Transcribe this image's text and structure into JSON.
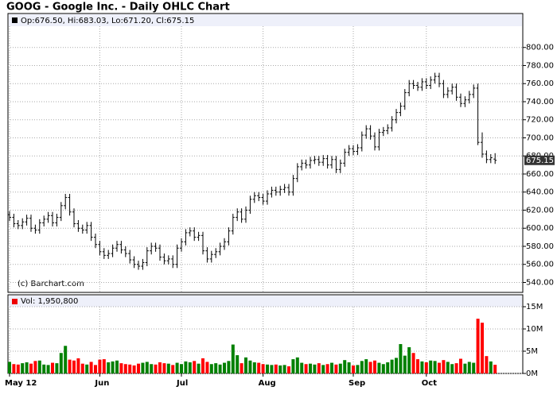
{
  "chart_data": [
    {
      "type": "ohlc",
      "title": "GOOG - Google Inc. - Daily OHLC Chart",
      "legend_text": "Op:676.50, Hi:683.03, Lo:671.20, Cl:675.15",
      "credit": "(c) Barchart.com",
      "color": "#000000",
      "grid": true,
      "last_label": "675.15",
      "ylim": [
        529,
        823.5
      ],
      "yticks": [
        {
          "value": 540,
          "label": "540.00"
        },
        {
          "value": 560,
          "label": "560.00"
        },
        {
          "value": 580,
          "label": "580.00"
        },
        {
          "value": 600,
          "label": "600.00"
        },
        {
          "value": 620,
          "label": "620.00"
        },
        {
          "value": 640,
          "label": "640.00"
        },
        {
          "value": 660,
          "label": "660.00"
        },
        {
          "value": 680,
          "label": "680.00"
        },
        {
          "value": 700,
          "label": "700.00"
        },
        {
          "value": 720,
          "label": "720.00"
        },
        {
          "value": 740,
          "label": "740.00"
        },
        {
          "value": 760,
          "label": "760.00"
        },
        {
          "value": 780,
          "label": "780.00"
        },
        {
          "value": 800,
          "label": "800.00"
        }
      ],
      "open": [
        615,
        612,
        605,
        603,
        607,
        611,
        600,
        598,
        606,
        610,
        614,
        606,
        612,
        625,
        634,
        618,
        605,
        600,
        598,
        603,
        590,
        582,
        574,
        570,
        572,
        578,
        582,
        576,
        572,
        565,
        560,
        558,
        562,
        575,
        580,
        578,
        568,
        564,
        566,
        560,
        578,
        585,
        595,
        597,
        590,
        592,
        575,
        566,
        571,
        574,
        580,
        585,
        597,
        612,
        618,
        610,
        620,
        632,
        636,
        634,
        630,
        638,
        642,
        640,
        643,
        645,
        640,
        655,
        668,
        672,
        670,
        675,
        676,
        673,
        677,
        670,
        676,
        665,
        672,
        684,
        688,
        685,
        689,
        703,
        710,
        702,
        690,
        706,
        708,
        711,
        720,
        728,
        735,
        750,
        760,
        758,
        756,
        762,
        758,
        764,
        768,
        760,
        748,
        752,
        756,
        745,
        738,
        742,
        748,
        755,
        695,
        682,
        676,
        676.5
      ],
      "high": [
        619,
        616,
        609,
        611,
        615,
        615,
        604,
        610,
        614,
        618,
        618,
        616,
        629,
        638,
        638,
        622,
        609,
        604,
        607,
        607,
        594,
        586,
        578,
        576,
        582,
        586,
        586,
        580,
        576,
        569,
        564,
        566,
        579,
        584,
        584,
        582,
        572,
        570,
        570,
        582,
        589,
        599,
        601,
        601,
        596,
        596,
        579,
        575,
        578,
        584,
        589,
        601,
        616,
        622,
        622,
        624,
        636,
        640,
        640,
        638,
        642,
        646,
        646,
        647,
        649,
        649,
        659,
        672,
        676,
        676,
        679,
        680,
        680,
        681,
        681,
        680,
        680,
        676,
        688,
        692,
        692,
        693,
        707,
        714,
        714,
        706,
        710,
        712,
        715,
        724,
        732,
        739,
        754,
        764,
        764,
        762,
        766,
        766,
        768,
        772,
        772,
        764,
        756,
        760,
        760,
        749,
        746,
        752,
        759,
        760,
        706,
        686,
        682,
        683.03
      ],
      "low": [
        608,
        601,
        599,
        599,
        603,
        596,
        594,
        594,
        602,
        606,
        602,
        602,
        608,
        621,
        614,
        601,
        596,
        594,
        594,
        586,
        578,
        570,
        566,
        566,
        568,
        574,
        572,
        568,
        561,
        556,
        554,
        554,
        558,
        571,
        574,
        564,
        560,
        560,
        556,
        556,
        574,
        581,
        591,
        586,
        586,
        571,
        562,
        562,
        567,
        570,
        576,
        581,
        593,
        608,
        606,
        606,
        616,
        628,
        630,
        626,
        626,
        634,
        636,
        636,
        639,
        636,
        636,
        651,
        664,
        666,
        666,
        671,
        669,
        669,
        666,
        666,
        661,
        661,
        668,
        680,
        681,
        681,
        685,
        699,
        698,
        686,
        686,
        702,
        704,
        707,
        716,
        724,
        731,
        746,
        754,
        752,
        752,
        754,
        754,
        760,
        756,
        744,
        744,
        748,
        741,
        734,
        734,
        738,
        744,
        692,
        678,
        672,
        672,
        671.2
      ],
      "close": [
        612,
        605,
        603,
        607,
        611,
        600,
        598,
        606,
        610,
        614,
        606,
        612,
        625,
        634,
        618,
        605,
        600,
        598,
        603,
        590,
        582,
        574,
        570,
        572,
        578,
        582,
        576,
        572,
        565,
        560,
        558,
        562,
        575,
        580,
        578,
        568,
        564,
        566,
        560,
        578,
        585,
        595,
        597,
        590,
        592,
        575,
        566,
        571,
        574,
        580,
        585,
        597,
        612,
        618,
        610,
        620,
        632,
        636,
        634,
        630,
        638,
        642,
        640,
        643,
        645,
        640,
        655,
        668,
        672,
        670,
        675,
        676,
        673,
        677,
        670,
        676,
        665,
        672,
        684,
        688,
        685,
        689,
        703,
        710,
        702,
        690,
        706,
        708,
        711,
        720,
        728,
        735,
        750,
        760,
        758,
        756,
        762,
        758,
        764,
        768,
        760,
        748,
        752,
        756,
        745,
        738,
        742,
        748,
        755,
        695,
        682,
        676,
        678,
        675.15
      ]
    },
    {
      "type": "bar",
      "legend_text": "Vol: 1,950,800",
      "up_color": "#008000",
      "down_color": "#ff0000",
      "grid": true,
      "ylim": [
        0,
        15000000
      ],
      "yticks": [
        {
          "value": 0,
          "label": "0M"
        },
        {
          "value": 5000000,
          "label": "5M"
        },
        {
          "value": 10000000,
          "label": "10M"
        },
        {
          "value": 15000000,
          "label": "15M"
        }
      ],
      "categories": [
        "May 12",
        null,
        null,
        null,
        null,
        null,
        null,
        null,
        null,
        null,
        null,
        null,
        null,
        null,
        null,
        null,
        null,
        null,
        null,
        null,
        null,
        "Jun",
        null,
        null,
        null,
        null,
        null,
        null,
        null,
        null,
        null,
        null,
        null,
        null,
        null,
        null,
        null,
        null,
        null,
        null,
        "Jul",
        null,
        null,
        null,
        null,
        null,
        null,
        null,
        null,
        null,
        null,
        null,
        null,
        null,
        null,
        null,
        null,
        null,
        null,
        "Aug",
        null,
        null,
        null,
        null,
        null,
        null,
        null,
        null,
        null,
        null,
        null,
        null,
        null,
        null,
        null,
        null,
        null,
        null,
        null,
        null,
        "Sep",
        null,
        null,
        null,
        null,
        null,
        null,
        null,
        null,
        null,
        null,
        null,
        null,
        null,
        null,
        null,
        null,
        "Oct",
        null,
        null,
        null,
        null,
        null,
        null,
        null,
        null,
        null,
        null,
        null,
        null,
        null,
        null,
        null,
        null
      ],
      "values": [
        2600000,
        2100000,
        2000000,
        2300000,
        2500000,
        2200000,
        2800000,
        2900000,
        2000000,
        1900000,
        2400000,
        2300000,
        4600000,
        6200000,
        3100000,
        2900000,
        3400000,
        2200000,
        2000000,
        2600000,
        1900000,
        3100000,
        3200000,
        2500000,
        2700000,
        2900000,
        2300000,
        2100000,
        2000000,
        1800000,
        2200000,
        2400000,
        2600000,
        2100000,
        2000000,
        2500000,
        2300000,
        2200000,
        1900000,
        2400000,
        2100000,
        2700000,
        2500000,
        2800000,
        2200000,
        3400000,
        2600000,
        2100000,
        2300000,
        2000000,
        2400000,
        2800000,
        6500000,
        4100000,
        2300000,
        3600000,
        2900000,
        2500000,
        2400000,
        2100000,
        2000000,
        1900000,
        2000000,
        1800000,
        1900000,
        1600000,
        3200000,
        3600000,
        2400000,
        2100000,
        2200000,
        2000000,
        2300000,
        1900000,
        2100000,
        2400000,
        2000000,
        2200000,
        3000000,
        2500000,
        1800000,
        1900000,
        2800000,
        3200000,
        2600000,
        2900000,
        2400000,
        2100000,
        2500000,
        3100000,
        3500000,
        6600000,
        4000000,
        5900000,
        4600000,
        3200000,
        2700000,
        2500000,
        2900000,
        2800000,
        2400000,
        3000000,
        2600000,
        2100000,
        2300000,
        3300000,
        2200000,
        2600000,
        2400000,
        12300000,
        11400000,
        3900000,
        2700000,
        1950800
      ]
    }
  ]
}
